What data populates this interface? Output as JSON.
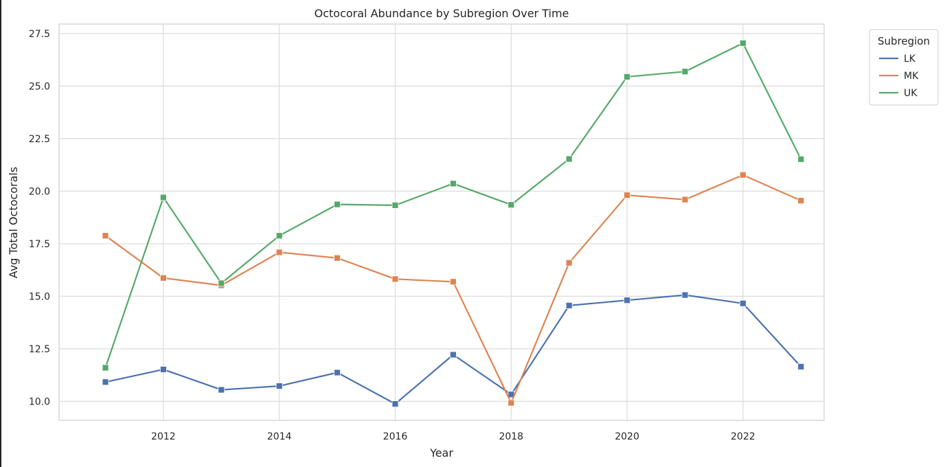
{
  "chart_data": {
    "type": "line",
    "title": "Octocoral Abundance by Subregion Over Time",
    "xlabel": "Year",
    "ylabel": "Avg Total Octocorals",
    "x": [
      2011,
      2012,
      2013,
      2014,
      2015,
      2016,
      2017,
      2018,
      2019,
      2020,
      2021,
      2022,
      2023
    ],
    "xlim": [
      2010.2,
      2023.4
    ],
    "ylim": [
      9.1,
      27.95
    ],
    "xticks": [
      2012,
      2014,
      2016,
      2018,
      2020,
      2022
    ],
    "yticks": [
      10.0,
      12.5,
      15.0,
      17.5,
      20.0,
      22.5,
      25.0,
      27.5
    ],
    "ytick_labels": [
      "10.0",
      "12.5",
      "15.0",
      "17.5",
      "20.0",
      "22.5",
      "25.0",
      "27.5"
    ],
    "grid": true,
    "legend": {
      "title": "Subregion",
      "placement": "outside-top-right"
    },
    "series": [
      {
        "name": "LK",
        "color": "#4c72b0",
        "values": [
          10.92,
          11.52,
          10.55,
          10.73,
          11.37,
          9.88,
          12.22,
          10.33,
          14.56,
          14.81,
          15.06,
          14.66,
          11.65
        ]
      },
      {
        "name": "MK",
        "color": "#dd8452",
        "values": [
          17.88,
          15.87,
          15.52,
          17.09,
          16.82,
          15.82,
          15.69,
          9.93,
          16.59,
          19.81,
          19.6,
          20.77,
          19.55
        ]
      },
      {
        "name": "UK",
        "color": "#55a868",
        "values": [
          11.6,
          19.7,
          15.62,
          17.88,
          19.37,
          19.33,
          20.36,
          19.35,
          21.53,
          25.44,
          25.69,
          27.04,
          21.52
        ]
      }
    ]
  }
}
